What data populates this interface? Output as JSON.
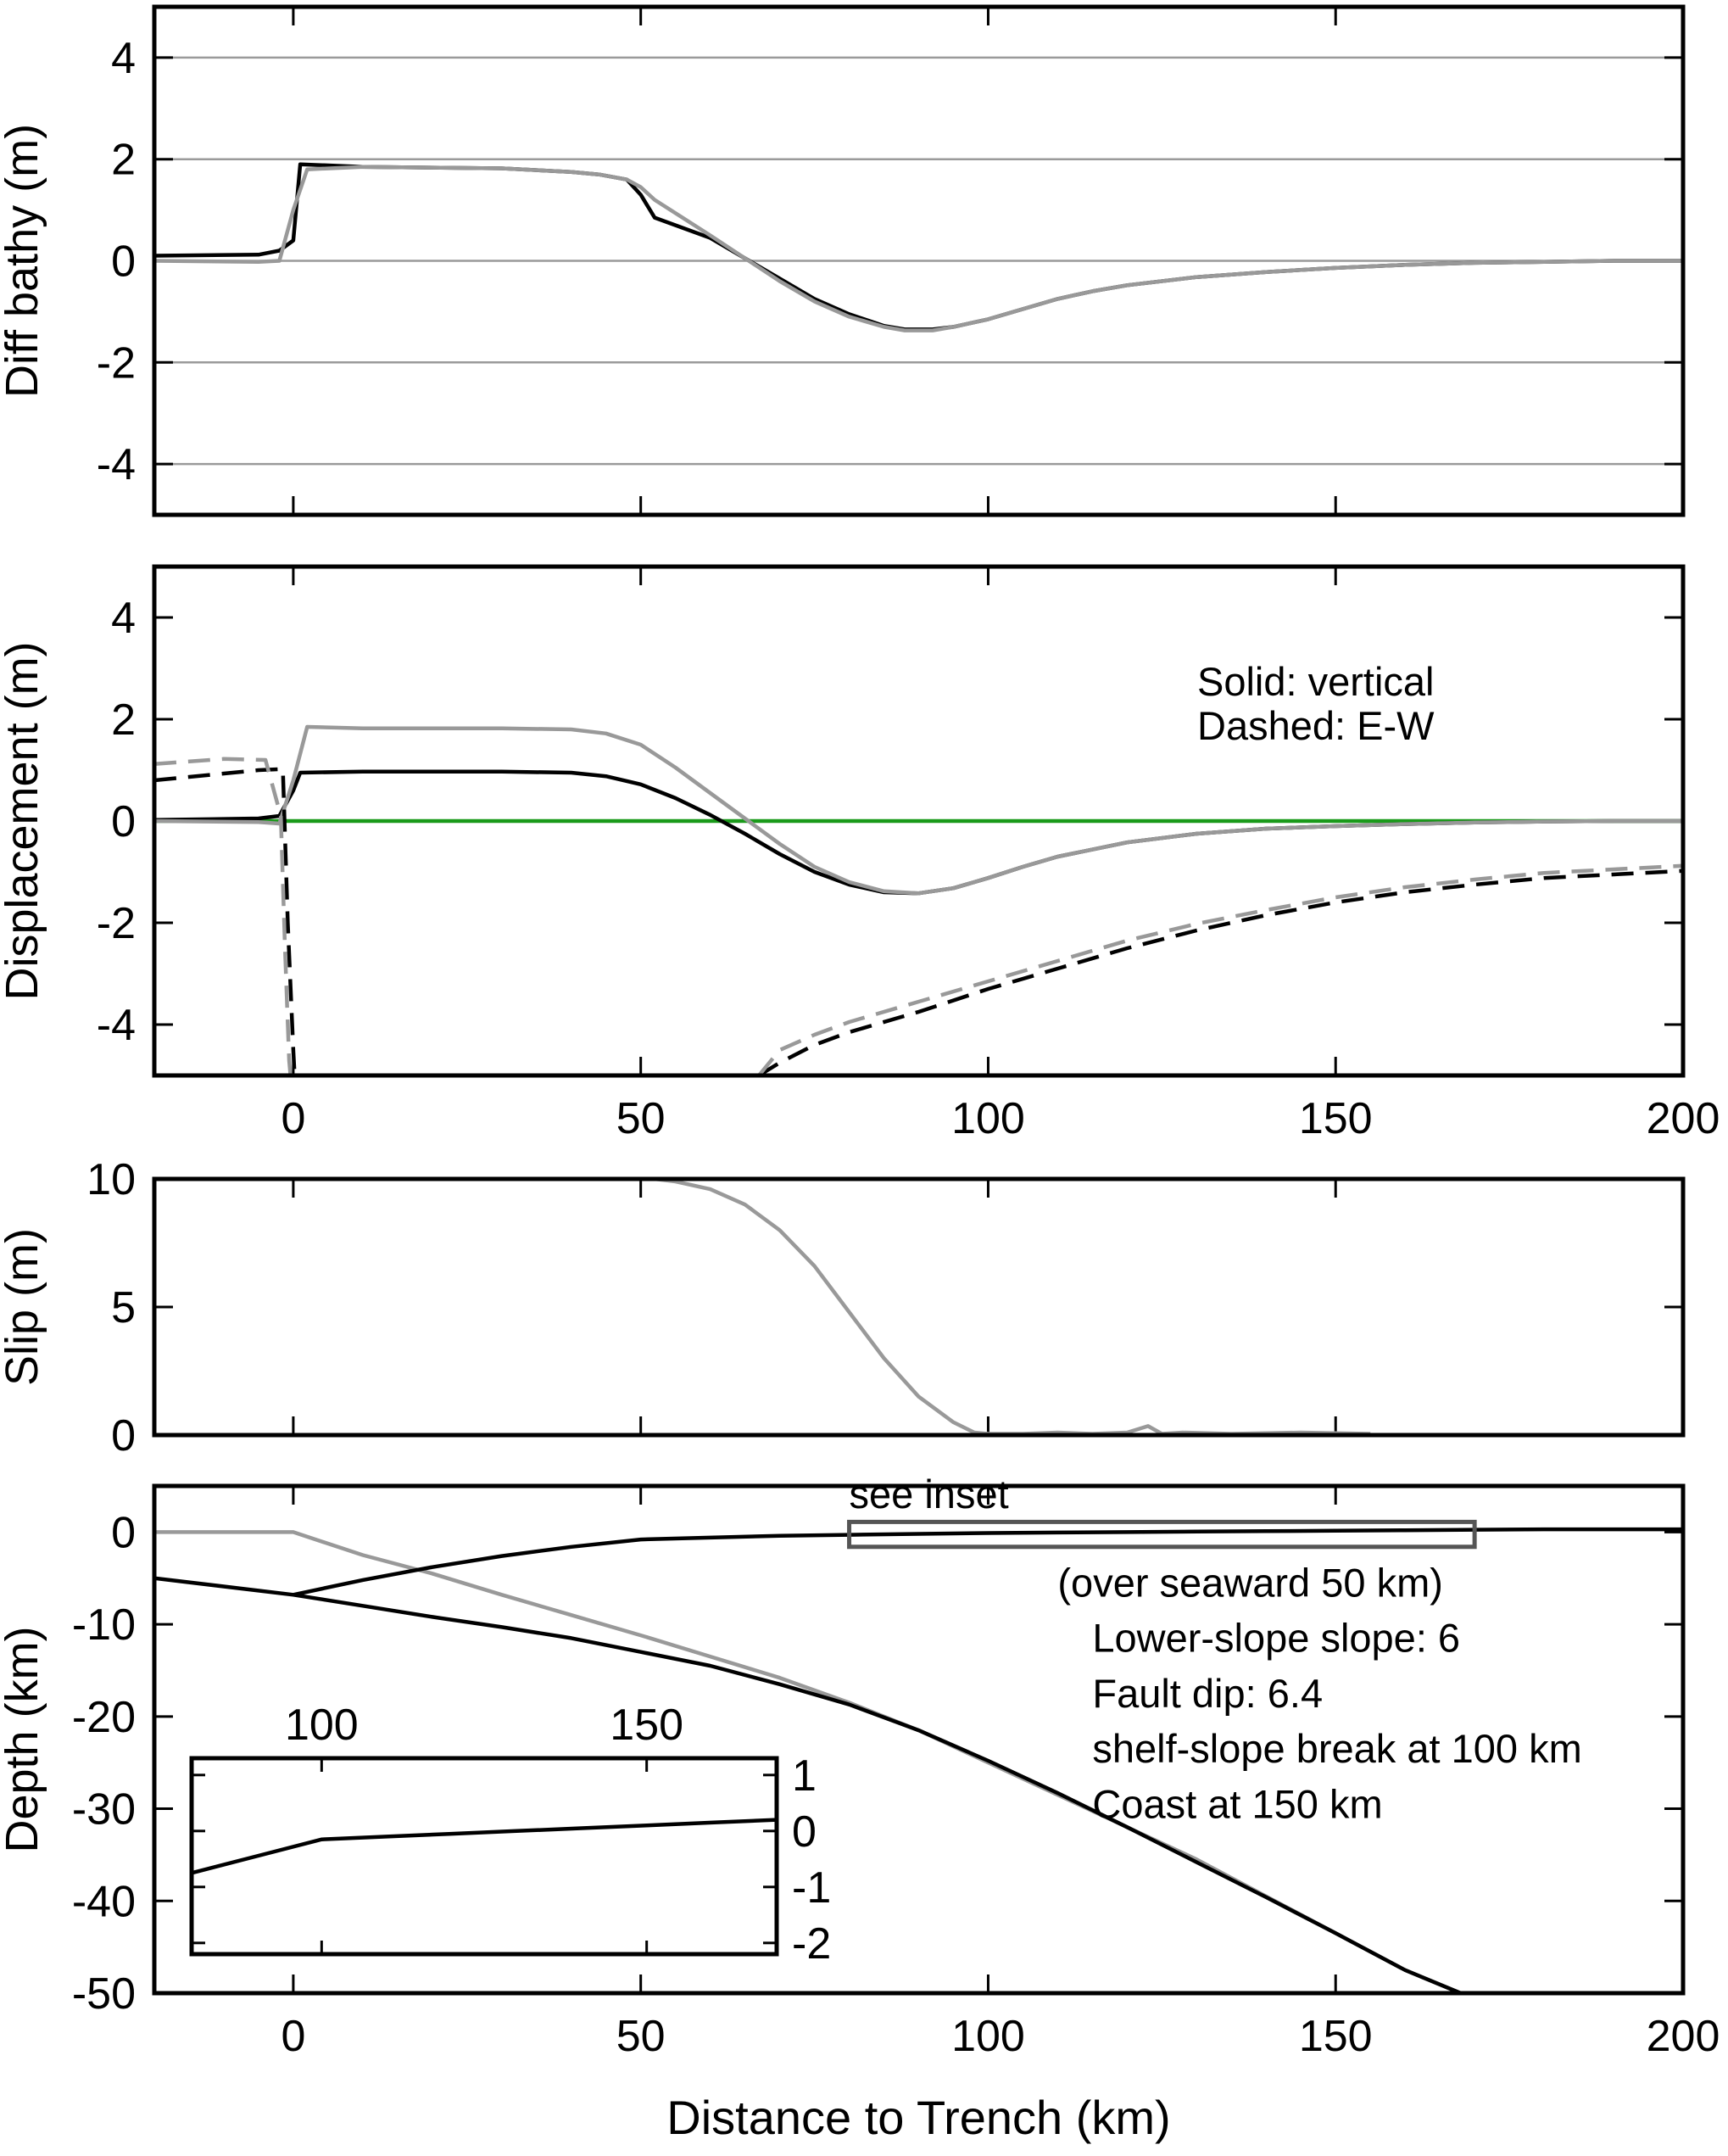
{
  "colors": {
    "black": "#000000",
    "gray": "#999999",
    "green": "#1a9a1a",
    "box": "#555555"
  },
  "chart_data": [
    {
      "id": "bathy",
      "type": "line",
      "title": "",
      "xlabel": "",
      "ylabel": "Diff bathy (m)",
      "xlim": [
        -20,
        200
      ],
      "ylim": [
        -5,
        5
      ],
      "yticks": [
        4,
        2,
        0,
        -2,
        -4
      ],
      "ytick_labels": [
        "4",
        "2",
        "0",
        "-2",
        "-4"
      ],
      "xticks": [
        0,
        50,
        100,
        150,
        200
      ],
      "xtick_labels": [],
      "grid_y": [
        4,
        2,
        0,
        -2,
        -4
      ],
      "series": [
        {
          "color": "black",
          "style": "solid",
          "x": [
            -20,
            -5,
            -2,
            0,
            1,
            10,
            30,
            40,
            44,
            48,
            50,
            52,
            60,
            65,
            70,
            75,
            80,
            85,
            88,
            92,
            95,
            100,
            105,
            110,
            115,
            120,
            130,
            140,
            150,
            160,
            170,
            180,
            190,
            200
          ],
          "y": [
            0.1,
            0.12,
            0.2,
            0.4,
            1.9,
            1.85,
            1.82,
            1.75,
            1.7,
            1.6,
            1.3,
            0.85,
            0.45,
            0.05,
            -0.35,
            -0.75,
            -1.05,
            -1.28,
            -1.35,
            -1.35,
            -1.3,
            -1.15,
            -0.95,
            -0.75,
            -0.6,
            -0.48,
            -0.32,
            -0.22,
            -0.14,
            -0.08,
            -0.04,
            -0.02,
            0,
            0
          ]
        },
        {
          "color": "gray",
          "style": "solid",
          "x": [
            -20,
            -5,
            -2,
            0,
            2,
            10,
            30,
            40,
            44,
            48,
            50,
            52,
            60,
            65,
            70,
            75,
            80,
            85,
            88,
            92,
            95,
            100,
            105,
            110,
            115,
            120,
            130,
            140,
            150,
            160,
            170,
            180,
            190,
            200
          ],
          "y": [
            0,
            -0.02,
            0,
            1.0,
            1.8,
            1.85,
            1.82,
            1.75,
            1.7,
            1.6,
            1.45,
            1.2,
            0.5,
            0.05,
            -0.4,
            -0.8,
            -1.1,
            -1.3,
            -1.37,
            -1.37,
            -1.3,
            -1.15,
            -0.95,
            -0.75,
            -0.6,
            -0.48,
            -0.32,
            -0.22,
            -0.14,
            -0.08,
            -0.04,
            -0.02,
            0,
            0
          ]
        }
      ],
      "annotations": []
    },
    {
      "id": "disp",
      "type": "line",
      "title": "",
      "xlabel": "",
      "ylabel": "Displacement (m)",
      "xlim": [
        -20,
        200
      ],
      "ylim": [
        -5,
        5
      ],
      "yticks": [
        4,
        2,
        0,
        -2,
        -4
      ],
      "ytick_labels": [
        "4",
        "2",
        "0",
        "-2",
        "-4"
      ],
      "xticks": [
        0,
        50,
        100,
        150,
        200
      ],
      "xtick_labels": [
        "0",
        "50",
        "100",
        "150",
        "200"
      ],
      "grid_y": [],
      "legend_text": [
        "Solid: vertical",
        "Dashed: E-W"
      ],
      "series": [
        {
          "color": "green",
          "style": "solid",
          "x": [
            -20,
            200
          ],
          "y": [
            0,
            0
          ]
        },
        {
          "color": "black",
          "style": "solid",
          "x": [
            -20,
            -5,
            -2,
            0,
            1,
            10,
            30,
            40,
            45,
            50,
            55,
            60,
            65,
            70,
            75,
            80,
            85,
            90,
            95,
            100,
            105,
            110,
            120,
            130,
            140,
            150,
            160,
            170,
            180,
            190,
            200
          ],
          "y": [
            0.02,
            0.05,
            0.1,
            0.6,
            0.95,
            0.97,
            0.97,
            0.95,
            0.88,
            0.72,
            0.45,
            0.12,
            -0.25,
            -0.65,
            -1.0,
            -1.25,
            -1.4,
            -1.42,
            -1.32,
            -1.12,
            -0.9,
            -0.7,
            -0.42,
            -0.25,
            -0.15,
            -0.1,
            -0.06,
            -0.03,
            -0.01,
            0,
            0
          ]
        },
        {
          "color": "gray",
          "style": "solid",
          "x": [
            -20,
            -5,
            -2,
            0,
            2,
            10,
            30,
            40,
            45,
            50,
            55,
            60,
            65,
            70,
            75,
            80,
            85,
            90,
            95,
            100,
            105,
            110,
            120,
            130,
            140,
            150,
            160,
            170,
            180,
            190,
            200
          ],
          "y": [
            0,
            -0.02,
            -0.05,
            0.8,
            1.85,
            1.82,
            1.82,
            1.8,
            1.72,
            1.5,
            1.05,
            0.55,
            0.05,
            -0.45,
            -0.9,
            -1.2,
            -1.38,
            -1.42,
            -1.32,
            -1.12,
            -0.9,
            -0.7,
            -0.42,
            -0.25,
            -0.15,
            -0.1,
            -0.06,
            -0.03,
            -0.01,
            0,
            0
          ]
        },
        {
          "color": "black",
          "style": "dashed",
          "x": [
            -20,
            -5,
            -1.5,
            -0.8,
            0,
            0.2
          ],
          "y": [
            0.8,
            1.0,
            1.02,
            -2.0,
            -4.5,
            -5
          ]
        },
        {
          "color": "gray",
          "style": "dashed",
          "x": [
            -20,
            -10,
            -4,
            -1.8,
            -1.2,
            -0.6,
            -0.4
          ],
          "y": [
            1.12,
            1.22,
            1.2,
            0.1,
            -2.5,
            -4.7,
            -5
          ]
        },
        {
          "color": "black",
          "style": "dashed",
          "x": [
            67,
            70,
            75,
            80,
            90,
            100,
            110,
            120,
            130,
            140,
            150,
            160,
            170,
            180,
            190,
            200
          ],
          "y": [
            -5,
            -4.75,
            -4.4,
            -4.15,
            -3.75,
            -3.3,
            -2.9,
            -2.5,
            -2.15,
            -1.85,
            -1.6,
            -1.4,
            -1.25,
            -1.12,
            -1.05,
            -0.98
          ]
        },
        {
          "color": "gray",
          "style": "dashed",
          "x": [
            67,
            70,
            75,
            80,
            90,
            100,
            110,
            120,
            130,
            140,
            150,
            160,
            170,
            180,
            190,
            200
          ],
          "y": [
            -5,
            -4.5,
            -4.2,
            -3.95,
            -3.55,
            -3.15,
            -2.75,
            -2.35,
            -2.02,
            -1.75,
            -1.5,
            -1.3,
            -1.15,
            -1.02,
            -0.95,
            -0.88
          ]
        }
      ],
      "annotations": []
    },
    {
      "id": "slip",
      "type": "line",
      "title": "",
      "xlabel": "",
      "ylabel": "Slip (m)",
      "xlim": [
        -20,
        200
      ],
      "ylim": [
        0,
        10
      ],
      "yticks": [
        10,
        5,
        0
      ],
      "ytick_labels": [
        "10",
        "5",
        "0"
      ],
      "xticks": [
        0,
        50,
        100,
        150,
        200
      ],
      "xtick_labels": [],
      "grid_y": [],
      "series": [
        {
          "color": "black",
          "style": "dotted",
          "x": [
            0,
            52
          ],
          "y": [
            10,
            10
          ]
        },
        {
          "color": "gray",
          "style": "solid",
          "x": [
            52,
            55,
            60,
            65,
            70,
            75,
            80,
            85,
            90,
            95,
            98,
            100,
            105,
            110,
            115,
            120,
            123,
            125,
            128,
            135,
            145,
            155
          ],
          "y": [
            10,
            9.9,
            9.6,
            9.0,
            8.0,
            6.6,
            4.8,
            3.0,
            1.5,
            0.5,
            0.1,
            0.05,
            0.05,
            0.1,
            0.05,
            0.1,
            0.35,
            0.05,
            0.1,
            0.05,
            0.1,
            0.05
          ]
        }
      ],
      "annotations": []
    },
    {
      "id": "depth",
      "type": "line",
      "title": "",
      "xlabel": "Distance to Trench (km)",
      "ylabel": "Depth (km)",
      "xlim": [
        -20,
        200
      ],
      "ylim": [
        -50,
        5
      ],
      "yticks": [
        0,
        -10,
        -20,
        -30,
        -40,
        -50
      ],
      "ytick_labels": [
        "0",
        "-10",
        "-20",
        "-30",
        "-40",
        "-50"
      ],
      "xticks": [
        0,
        50,
        100,
        150,
        200
      ],
      "xtick_labels": [
        "0",
        "50",
        "100",
        "150",
        "200"
      ],
      "grid_y": [],
      "inset_box": {
        "x0": 80,
        "x1": 170,
        "y0": -1.6,
        "y1": 1.1
      },
      "series": [
        {
          "color": "gray",
          "style": "solid",
          "x": [
            -20,
            0,
            10,
            20,
            30,
            40,
            50,
            60,
            70,
            80,
            90,
            100,
            110,
            120,
            130,
            140,
            150,
            160,
            168
          ],
          "y": [
            0,
            0,
            -2.5,
            -4.5,
            -6.8,
            -9,
            -11.2,
            -13.5,
            -15.8,
            -18.5,
            -21.5,
            -25,
            -28.5,
            -32,
            -35.5,
            -39.5,
            -43.5,
            -47.5,
            -50
          ]
        },
        {
          "color": "black",
          "style": "solid",
          "x": [
            -20,
            0,
            10,
            20,
            30,
            40,
            50,
            60,
            70,
            80,
            90,
            100,
            110,
            120,
            130,
            140,
            150,
            160,
            168
          ],
          "y": [
            -5,
            -6.8,
            -8,
            -9.2,
            -10.3,
            -11.5,
            -13,
            -14.5,
            -16.5,
            -18.7,
            -21.5,
            -24.8,
            -28.3,
            -32,
            -35.8,
            -39.6,
            -43.5,
            -47.5,
            -50
          ]
        },
        {
          "color": "black",
          "style": "solid",
          "x": [
            0,
            10,
            20,
            30,
            40,
            50,
            60,
            70,
            80,
            90,
            100,
            110,
            120,
            130,
            140,
            150,
            160,
            170,
            180,
            190,
            200
          ],
          "y": [
            -6.8,
            -5.2,
            -3.8,
            -2.6,
            -1.6,
            -0.8,
            -0.6,
            -0.4,
            -0.3,
            -0.2,
            -0.1,
            -0.05,
            0,
            0.05,
            0.1,
            0.15,
            0.2,
            0.25,
            0.3,
            0.3,
            0.3
          ]
        }
      ],
      "annotations": [
        {
          "text": "see inset",
          "x": 80,
          "y": 2.6,
          "anchor": "start"
        },
        {
          "text": "(over seaward 50 km)",
          "x": 110,
          "y": -7,
          "anchor": "start"
        },
        {
          "text": "Lower-slope slope: 6",
          "x": 115,
          "y": -13,
          "anchor": "start"
        },
        {
          "text": "Fault dip: 6.4",
          "x": 115,
          "y": -19,
          "anchor": "start"
        },
        {
          "text": "shelf-slope break at 100 km",
          "x": 115,
          "y": -25,
          "anchor": "start"
        },
        {
          "text": "Coast at 150 km",
          "x": 115,
          "y": -31,
          "anchor": "start"
        }
      ]
    },
    {
      "id": "inset",
      "type": "line",
      "title": "",
      "xlabel": "",
      "ylabel": "",
      "xlim": [
        80,
        170
      ],
      "ylim": [
        -2.2,
        1.3
      ],
      "xticks": [
        80,
        100,
        150,
        170
      ],
      "xtick_labels": [
        "",
        "100",
        "150",
        ""
      ],
      "yticks": [
        1,
        0,
        -1,
        -2
      ],
      "ytick_labels": [
        "1",
        "0",
        "-1",
        "-2"
      ],
      "series": [
        {
          "color": "black",
          "style": "solid",
          "x": [
            80,
            90,
            100,
            110,
            120,
            130,
            140,
            150,
            160,
            170
          ],
          "y": [
            -0.75,
            -0.45,
            -0.15,
            -0.1,
            -0.05,
            0,
            0.05,
            0.1,
            0.15,
            0.2
          ]
        }
      ]
    }
  ]
}
